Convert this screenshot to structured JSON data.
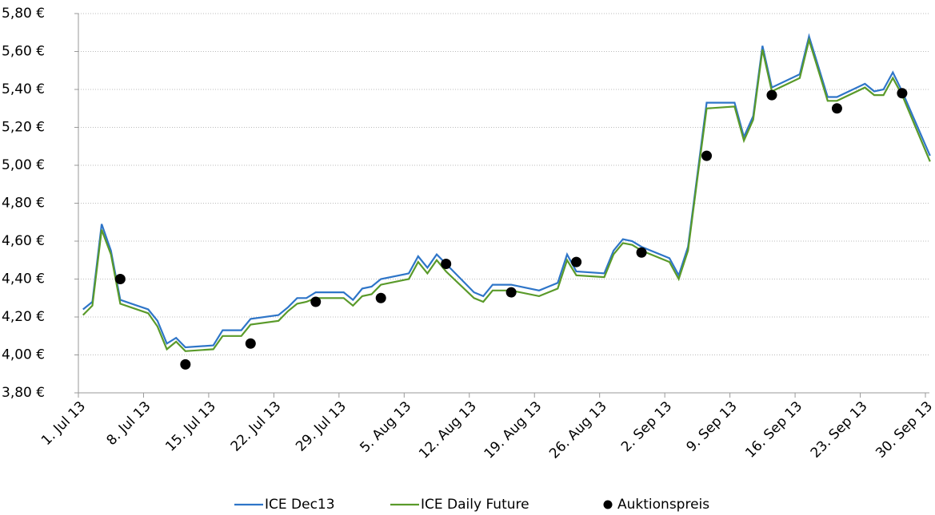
{
  "chart_data": {
    "type": "line",
    "x": [
      "2013-07-01",
      "2013-07-02",
      "2013-07-03",
      "2013-07-04",
      "2013-07-05",
      "2013-07-08",
      "2013-07-09",
      "2013-07-10",
      "2013-07-11",
      "2013-07-12",
      "2013-07-15",
      "2013-07-16",
      "2013-07-17",
      "2013-07-18",
      "2013-07-19",
      "2013-07-22",
      "2013-07-23",
      "2013-07-24",
      "2013-07-25",
      "2013-07-26",
      "2013-07-29",
      "2013-07-30",
      "2013-07-31",
      "2013-08-01",
      "2013-08-02",
      "2013-08-05",
      "2013-08-06",
      "2013-08-07",
      "2013-08-08",
      "2013-08-09",
      "2013-08-12",
      "2013-08-13",
      "2013-08-14",
      "2013-08-15",
      "2013-08-16",
      "2013-08-19",
      "2013-08-20",
      "2013-08-21",
      "2013-08-22",
      "2013-08-23",
      "2013-08-26",
      "2013-08-27",
      "2013-08-28",
      "2013-08-29",
      "2013-08-30",
      "2013-09-02",
      "2013-09-03",
      "2013-09-04",
      "2013-09-05",
      "2013-09-06",
      "2013-09-09",
      "2013-09-10",
      "2013-09-11",
      "2013-09-12",
      "2013-09-13",
      "2013-09-16",
      "2013-09-17",
      "2013-09-18",
      "2013-09-19",
      "2013-09-20",
      "2013-09-23",
      "2013-09-24",
      "2013-09-25",
      "2013-09-26",
      "2013-09-27",
      "2013-09-30"
    ],
    "series": [
      {
        "name": "ICE Dec13",
        "color": "#2e75c8",
        "values": [
          4.24,
          4.28,
          4.69,
          4.55,
          4.29,
          4.24,
          4.18,
          4.06,
          4.09,
          4.04,
          4.05,
          4.13,
          4.13,
          4.13,
          4.19,
          4.21,
          4.25,
          4.3,
          4.3,
          4.33,
          4.33,
          4.29,
          4.35,
          4.36,
          4.4,
          4.43,
          4.52,
          4.46,
          4.53,
          4.48,
          4.33,
          4.31,
          4.37,
          4.37,
          4.37,
          4.34,
          4.36,
          4.38,
          4.53,
          4.44,
          4.43,
          4.55,
          4.61,
          4.6,
          4.57,
          4.51,
          4.42,
          4.57,
          4.95,
          5.33,
          5.33,
          5.15,
          5.26,
          5.63,
          5.41,
          5.48,
          5.68,
          5.52,
          5.36,
          5.36,
          5.43,
          5.39,
          5.4,
          5.49,
          5.39,
          5.05
        ]
      },
      {
        "name": "ICE Daily Future",
        "color": "#5a9a2a",
        "values": [
          4.21,
          4.26,
          4.66,
          4.53,
          4.27,
          4.22,
          4.15,
          4.03,
          4.07,
          4.02,
          4.03,
          4.1,
          4.1,
          4.1,
          4.16,
          4.18,
          4.23,
          4.27,
          4.28,
          4.3,
          4.3,
          4.26,
          4.31,
          4.32,
          4.37,
          4.4,
          4.49,
          4.43,
          4.5,
          4.44,
          4.3,
          4.28,
          4.34,
          4.34,
          4.34,
          4.31,
          4.33,
          4.35,
          4.5,
          4.42,
          4.41,
          4.53,
          4.59,
          4.58,
          4.55,
          4.49,
          4.4,
          4.55,
          4.93,
          5.3,
          5.31,
          5.13,
          5.24,
          5.61,
          5.39,
          5.46,
          5.66,
          5.5,
          5.34,
          5.34,
          5.41,
          5.37,
          5.37,
          5.46,
          5.37,
          5.02
        ]
      },
      {
        "name": "Auktionspreis",
        "color": "#000000",
        "marker": "dot",
        "x": [
          "2013-07-05",
          "2013-07-12",
          "2013-07-19",
          "2013-07-26",
          "2013-08-02",
          "2013-08-09",
          "2013-08-16",
          "2013-08-23",
          "2013-08-30",
          "2013-09-06",
          "2013-09-13",
          "2013-09-20",
          "2013-09-27"
        ],
        "values": [
          4.4,
          3.95,
          4.06,
          4.28,
          4.3,
          4.48,
          4.33,
          4.49,
          4.54,
          5.05,
          5.37,
          5.3,
          5.38
        ]
      }
    ],
    "xlim": [
      "2013-07-01",
      "2013-09-30"
    ],
    "xticks": [
      {
        "value": "2013-07-01",
        "label": "1. Jul 13"
      },
      {
        "value": "2013-07-08",
        "label": "8. Jul 13"
      },
      {
        "value": "2013-07-15",
        "label": "15. Jul 13"
      },
      {
        "value": "2013-07-22",
        "label": "22. Jul 13"
      },
      {
        "value": "2013-07-29",
        "label": "29. Jul 13"
      },
      {
        "value": "2013-08-05",
        "label": "5. Aug 13"
      },
      {
        "value": "2013-08-12",
        "label": "12. Aug 13"
      },
      {
        "value": "2013-08-19",
        "label": "19. Aug 13"
      },
      {
        "value": "2013-08-26",
        "label": "26. Aug 13"
      },
      {
        "value": "2013-09-02",
        "label": "2. Sep 13"
      },
      {
        "value": "2013-09-09",
        "label": "9. Sep 13"
      },
      {
        "value": "2013-09-16",
        "label": "16. Sep 13"
      },
      {
        "value": "2013-09-23",
        "label": "23. Sep 13"
      },
      {
        "value": "2013-09-30",
        "label": "30. Sep 13"
      }
    ],
    "ylim": [
      3.8,
      5.8
    ],
    "yticks": [
      {
        "value": 3.8,
        "label": "3,80 €"
      },
      {
        "value": 4.0,
        "label": "4,00 €"
      },
      {
        "value": 4.2,
        "label": "4,20 €"
      },
      {
        "value": 4.4,
        "label": "4,40 €"
      },
      {
        "value": 4.6,
        "label": "4,60 €"
      },
      {
        "value": 4.8,
        "label": "4,80 €"
      },
      {
        "value": 5.0,
        "label": "5,00 €"
      },
      {
        "value": 5.2,
        "label": "5,20 €"
      },
      {
        "value": 5.4,
        "label": "5,40 €"
      },
      {
        "value": 5.6,
        "label": "5,60 €"
      },
      {
        "value": 5.8,
        "label": "5,80 €"
      }
    ],
    "grid": true,
    "legend": "bottom"
  }
}
